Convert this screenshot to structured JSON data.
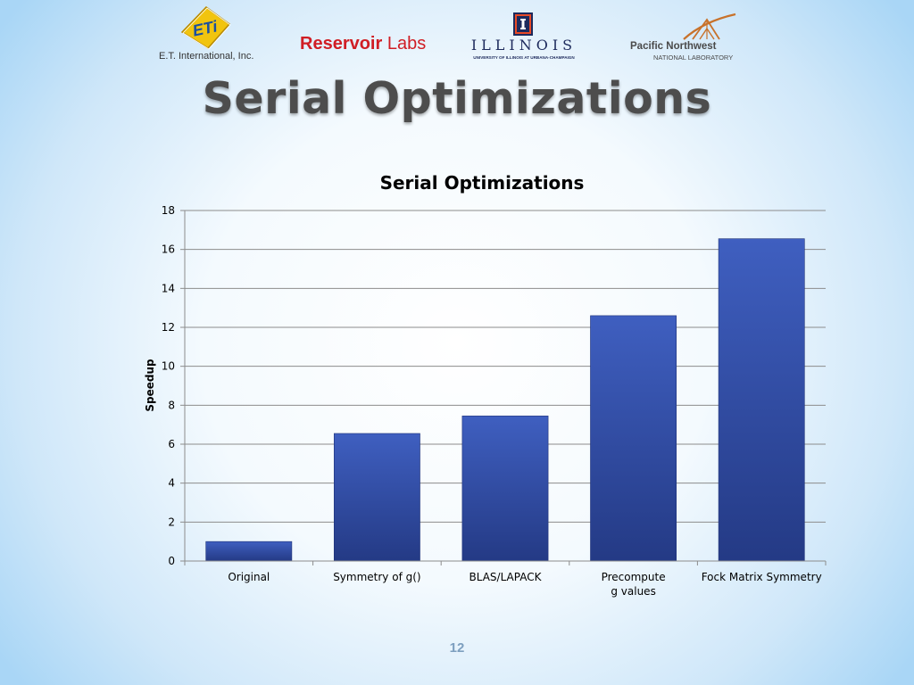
{
  "logos": {
    "eti": {
      "badge_text": "ETi",
      "caption": "E.T. International, Inc."
    },
    "reservoir": {
      "name": "Reservoir",
      "suffix": "Labs"
    },
    "illinois": {
      "wordmark": "ILLINOIS",
      "subtitle": "UNIVERSITY OF ILLINOIS AT URBANA-CHAMPAIGN"
    },
    "pnnl": {
      "name": "Pacific Northwest",
      "subtitle": "NATIONAL LABORATORY"
    }
  },
  "slide": {
    "title": "Serial Optimizations",
    "page_number": "12"
  },
  "colors": {
    "bar_top": "#3f5fc0",
    "bar_bottom": "#243a85",
    "gridline": "#8c8c8c",
    "title_text": "#4d4d4d",
    "axis_text": "#000000",
    "eti_yellow": "#f1c40f",
    "reservoir_red": "#d01d24",
    "illinois_blue": "#1d2a5c",
    "illinois_orange": "#e84a27",
    "pnnl_orange": "#c8722b"
  },
  "chart_data": {
    "type": "bar",
    "title": "Serial Optimizations",
    "xlabel": "",
    "ylabel": "Speedup",
    "categories": [
      "Original",
      "Symmetry of g()",
      "BLAS/LAPACK",
      "Precompute g values",
      "Fock Matrix Symmetry"
    ],
    "category_label_lines": [
      [
        "Original"
      ],
      [
        "Symmetry of g()"
      ],
      [
        "BLAS/LAPACK"
      ],
      [
        "Precompute",
        "g values"
      ],
      [
        "Fock Matrix Symmetry"
      ]
    ],
    "values": [
      1,
      6.55,
      7.45,
      12.6,
      16.55
    ],
    "ylim": [
      0,
      18
    ],
    "yticks": [
      0,
      2,
      4,
      6,
      8,
      10,
      12,
      14,
      16,
      18
    ],
    "grid": true,
    "legend": "none"
  }
}
